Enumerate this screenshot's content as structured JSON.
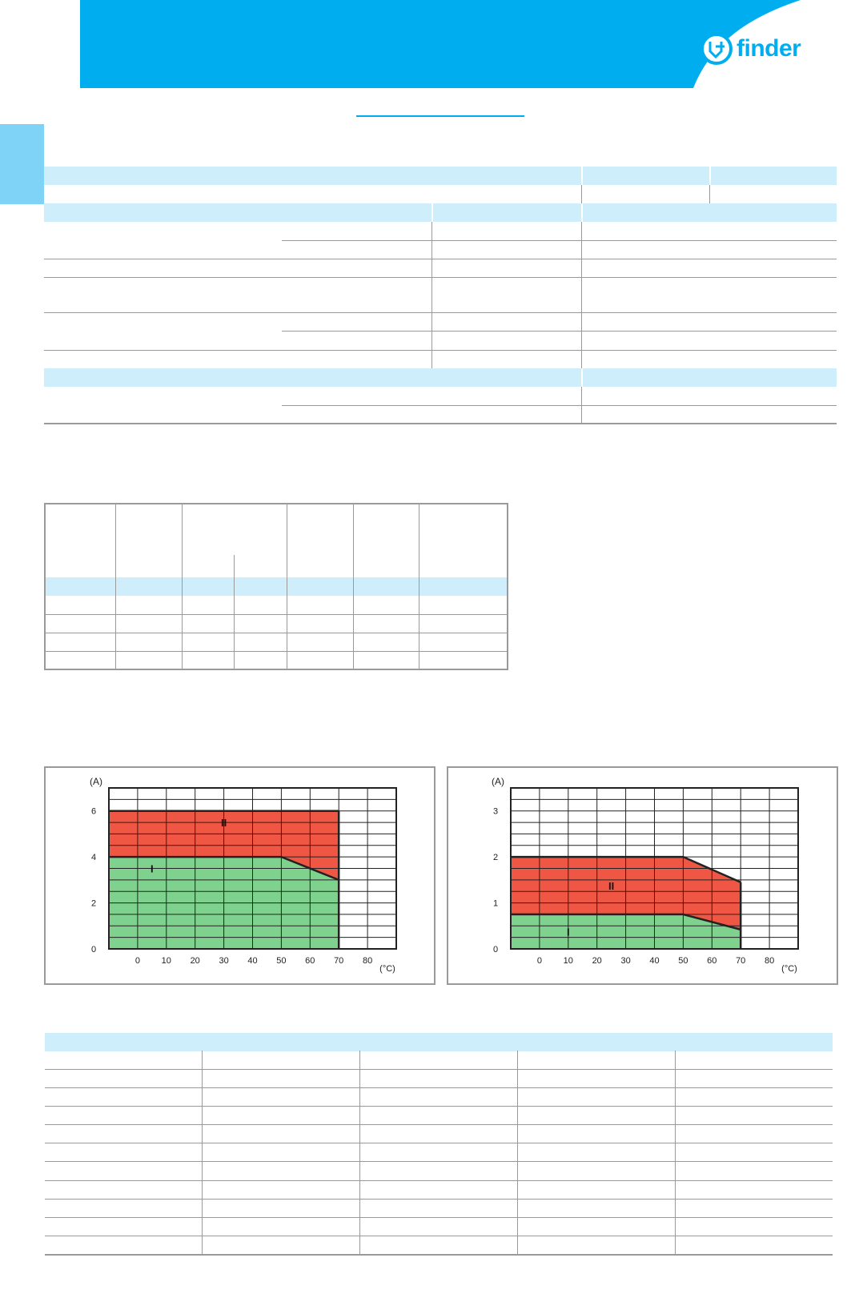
{
  "header": {
    "brand": "finder",
    "brand_color": "#00aeef",
    "band_color": "#00aeef",
    "row_tint": "#cdeefa",
    "tab_color": "#7fd3f7"
  },
  "chart_data": [
    {
      "type": "area",
      "xlabel": "(°C)",
      "ylabel": "(A)",
      "xlim": [
        -10,
        90
      ],
      "ylim": [
        0,
        7
      ],
      "xticks": [
        "0",
        "10",
        "20",
        "30",
        "40",
        "50",
        "60",
        "70",
        "80"
      ],
      "yticks": [
        "0",
        "2",
        "4",
        "6"
      ],
      "grid": true,
      "series": [
        {
          "name": "I",
          "color": "#7fd18e",
          "x": [
            -10,
            50,
            70
          ],
          "y": [
            4,
            4,
            3
          ]
        },
        {
          "name": "II",
          "color": "#ef5744",
          "x": [
            -10,
            50,
            70
          ],
          "y": [
            6,
            6,
            6
          ]
        }
      ]
    },
    {
      "type": "area",
      "xlabel": "(°C)",
      "ylabel": "(A)",
      "xlim": [
        -10,
        90
      ],
      "ylim": [
        0,
        3.5
      ],
      "xticks": [
        "0",
        "10",
        "20",
        "30",
        "40",
        "50",
        "60",
        "70",
        "80"
      ],
      "yticks": [
        "0",
        "1",
        "2",
        "3"
      ],
      "grid": true,
      "series": [
        {
          "name": "I",
          "color": "#7fd18e",
          "x": [
            -10,
            50,
            70
          ],
          "y": [
            0.75,
            0.75,
            0.42
          ]
        },
        {
          "name": "II",
          "color": "#ef5744",
          "x": [
            -10,
            50,
            70
          ],
          "y": [
            2,
            2,
            1.45
          ]
        }
      ]
    }
  ]
}
